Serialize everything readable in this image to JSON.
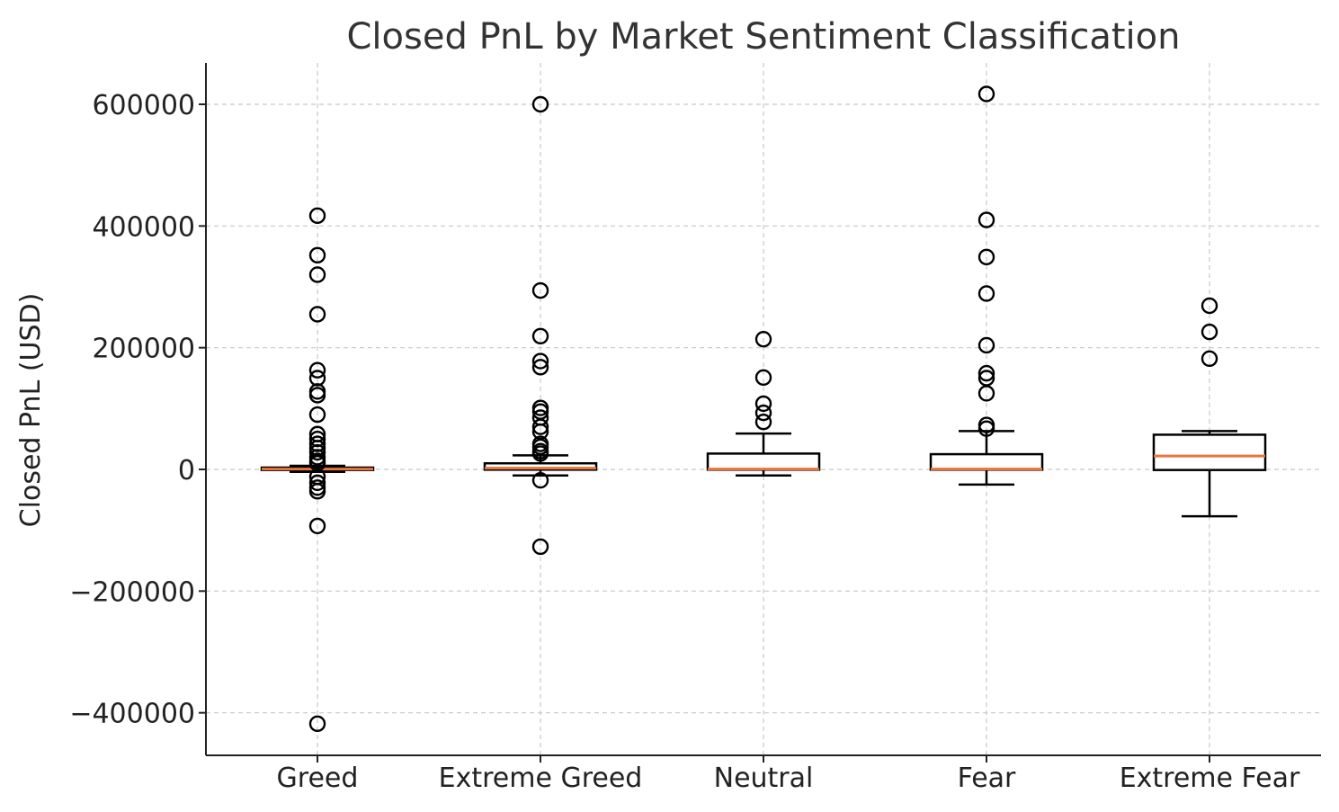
{
  "chart_data": {
    "type": "box",
    "title": "Closed PnL by Market Sentiment Classification",
    "xlabel": "",
    "ylabel": "Closed PnL (USD)",
    "ylim": [
      -470000,
      670000
    ],
    "yticks": [
      600000,
      400000,
      200000,
      0,
      -200000,
      -400000
    ],
    "ytick_labels": [
      "600000",
      "400000",
      "200000",
      "0",
      "−200000",
      "−400000"
    ],
    "grid": true,
    "categories": [
      "Greed",
      "Extreme Greed",
      "Neutral",
      "Fear",
      "Extreme Fear"
    ],
    "boxes": [
      {
        "category": "Greed",
        "whislo": -4000,
        "q1": -1000,
        "median": 500,
        "q3": 3000,
        "whishi": 6000,
        "fliers": [
          417000,
          352000,
          320000,
          255000,
          163000,
          150000,
          128000,
          122000,
          90000,
          58000,
          50000,
          42000,
          35000,
          28000,
          20000,
          14000,
          10000,
          -12000,
          -22000,
          -30000,
          -36000,
          -93000,
          -418000
        ]
      },
      {
        "category": "Extreme Greed",
        "whislo": -10000,
        "q1": -500,
        "median": 2000,
        "q3": 10000,
        "whishi": 23000,
        "fliers": [
          600000,
          294000,
          219000,
          178000,
          168000,
          101000,
          95000,
          85000,
          70000,
          62000,
          42000,
          37000,
          30000,
          26000,
          -18000,
          -127000
        ]
      },
      {
        "category": "Neutral",
        "whislo": -10000,
        "q1": -500,
        "median": 500,
        "q3": 26000,
        "whishi": 59000,
        "fliers": [
          214000,
          151000,
          108000,
          93000,
          78000
        ]
      },
      {
        "category": "Fear",
        "whislo": -25000,
        "q1": -500,
        "median": 500,
        "q3": 25000,
        "whishi": 63000,
        "fliers": [
          617000,
          410000,
          349000,
          289000,
          204000,
          158000,
          150000,
          125000,
          73000,
          67000
        ]
      },
      {
        "category": "Extreme Fear",
        "whislo": -77000,
        "q1": -1000,
        "median": 22000,
        "q3": 57000,
        "whishi": 63000,
        "fliers": [
          269000,
          226000,
          182000
        ]
      }
    ]
  }
}
